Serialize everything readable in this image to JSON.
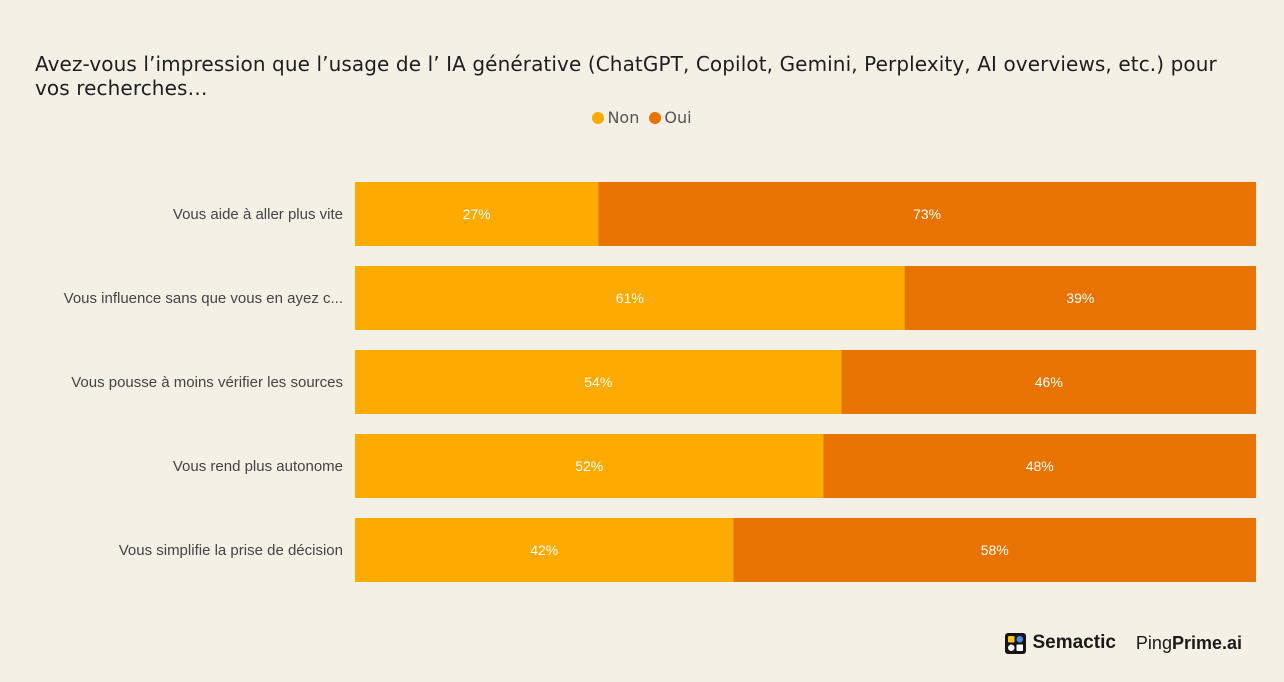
{
  "chart_data": {
    "type": "bar",
    "orientation": "horizontal",
    "stacked": "100%",
    "title": "Avez-vous l’impression que l’usage de l’ IA générative (ChatGPT, Copilot, Gemini, Perplexity, AI overviews, etc.) pour vos recherches…",
    "categories": [
      "Vous aide à aller plus vite",
      "Vous influence sans que vous en ayez c...",
      "Vous pousse à moins vérifier les sources",
      "Vous rend plus autonome",
      "Vous simplifie la prise de décision"
    ],
    "series": [
      {
        "name": "Non",
        "color": "#fdab00",
        "values": [
          27,
          61,
          54,
          52,
          42
        ]
      },
      {
        "name": "Oui",
        "color": "#e97300",
        "values": [
          73,
          39,
          46,
          48,
          58
        ]
      }
    ],
    "value_suffix": "%",
    "legend_position": "top-center",
    "grid": false
  },
  "branding": {
    "semactic_label": "Semactic",
    "pingprime_ping": "Ping",
    "pingprime_prime": "Prime.ai"
  }
}
